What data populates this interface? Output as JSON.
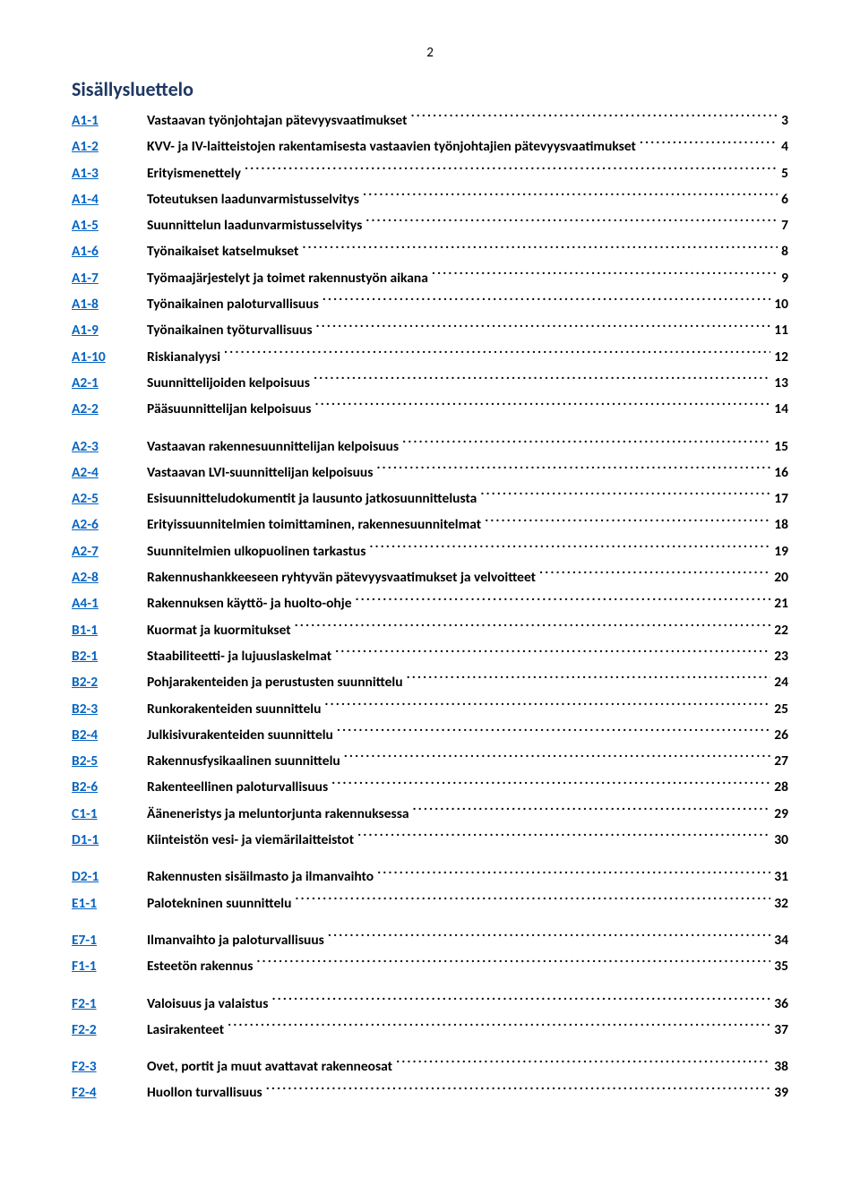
{
  "page_number": "2",
  "title": "Sisällysluettelo",
  "entries": [
    {
      "code": "A1-1",
      "text": "Vastaavan työnjohtajan pätevyysvaatimukset",
      "page": "3"
    },
    {
      "code": "A1-2",
      "text": "KVV- ja IV-laitteistojen rakentamisesta vastaavien työnjohtajien pätevyysvaatimukset",
      "page": "4"
    },
    {
      "code": "A1-3",
      "text": "Erityismenettely",
      "page": "5"
    },
    {
      "code": "A1-4",
      "text": "Toteutuksen laadunvarmistusselvitys",
      "page": "6"
    },
    {
      "code": "A1-5",
      "text": "Suunnittelun laadunvarmistusselvitys",
      "page": "7"
    },
    {
      "code": "A1-6",
      "text": "Työnaikaiset katselmukset",
      "page": "8"
    },
    {
      "code": "A1-7",
      "text": "Työmaajärjestelyt ja toimet rakennustyön aikana",
      "page": "9"
    },
    {
      "code": "A1-8",
      "text": "Työnaikainen paloturvallisuus",
      "page": "10"
    },
    {
      "code": "A1-9",
      "text": "Työnaikainen työturvallisuus",
      "page": "11"
    },
    {
      "code": "A1-10",
      "text": "Riskianalyysi",
      "page": "12"
    },
    {
      "code": "A2-1",
      "text": "Suunnittelijoiden kelpoisuus",
      "page": "13"
    },
    {
      "code": "A2-2",
      "text": "Pääsuunnittelijan kelpoisuus",
      "page": "14",
      "gap": true
    },
    {
      "code": "A2-3",
      "text": "Vastaavan rakennesuunnittelijan kelpoisuus",
      "page": "15"
    },
    {
      "code": "A2-4",
      "text": "Vastaavan LVI-suunnittelijan kelpoisuus",
      "page": "16"
    },
    {
      "code": "A2-5",
      "text": "Esisuunnitteludokumentit ja lausunto jatkosuunnittelusta",
      "page": "17"
    },
    {
      "code": "A2-6",
      "text": "Erityissuunnitelmien toimittaminen, rakennesuunnitelmat",
      "page": "18"
    },
    {
      "code": "A2-7",
      "text": "Suunnitelmien ulkopuolinen tarkastus",
      "page": "19"
    },
    {
      "code": "A2-8",
      "text": "Rakennushankkeeseen ryhtyvän pätevyysvaatimukset ja velvoitteet",
      "page": "20"
    },
    {
      "code": "A4-1",
      "text": "Rakennuksen käyttö- ja huolto-ohje",
      "page": "21"
    },
    {
      "code": "B1-1",
      "text": "Kuormat ja kuormitukset",
      "page": "22"
    },
    {
      "code": "B2-1",
      "text": "Staabiliteetti- ja lujuuslaskelmat",
      "page": "23"
    },
    {
      "code": "B2-2",
      "text": "Pohjarakenteiden ja perustusten suunnittelu",
      "page": "24"
    },
    {
      "code": "B2-3",
      "text": "Runkorakenteiden suunnittelu",
      "page": "25"
    },
    {
      "code": "B2-4",
      "text": "Julkisivurakenteiden suunnittelu",
      "page": "26"
    },
    {
      "code": "B2-5",
      "text": "Rakennusfysikaalinen suunnittelu",
      "page": "27"
    },
    {
      "code": "B2-6",
      "text": "Rakenteellinen paloturvallisuus",
      "page": "28"
    },
    {
      "code": "C1-1",
      "text": "Ääneneristys ja meluntorjunta rakennuksessa",
      "page": "29"
    },
    {
      "code": "D1-1",
      "text": "Kiinteistön vesi- ja viemärilaitteistot",
      "page": "30",
      "gap": true
    },
    {
      "code": "D2-1",
      "text": "Rakennusten sisäilmasto ja ilmanvaihto",
      "page": "31"
    },
    {
      "code": "E1-1",
      "text": "Palotekninen suunnittelu",
      "page": "32",
      "gap": true
    },
    {
      "code": "E7-1",
      "text": "Ilmanvaihto ja paloturvallisuus",
      "page": "34"
    },
    {
      "code": "F1-1",
      "text": "Esteetön rakennus",
      "page": "35",
      "gap": true
    },
    {
      "code": "F2-1",
      "text": "Valoisuus ja valaistus",
      "page": "36"
    },
    {
      "code": "F2-2",
      "text": "Lasirakenteet",
      "page": "37",
      "gap": true
    },
    {
      "code": "F2-3",
      "text": "Ovet, portit ja muut avattavat rakenneosat",
      "page": "38"
    },
    {
      "code": "F2-4",
      "text": "Huollon turvallisuus",
      "page": "39"
    }
  ],
  "colors": {
    "title_color": "#1f3863",
    "link_color": "#0563c1",
    "text_color": "#000000",
    "background": "#ffffff"
  },
  "typography": {
    "title_fontsize": 22,
    "entry_fontsize": 15.5,
    "font_family": "Calibri"
  }
}
